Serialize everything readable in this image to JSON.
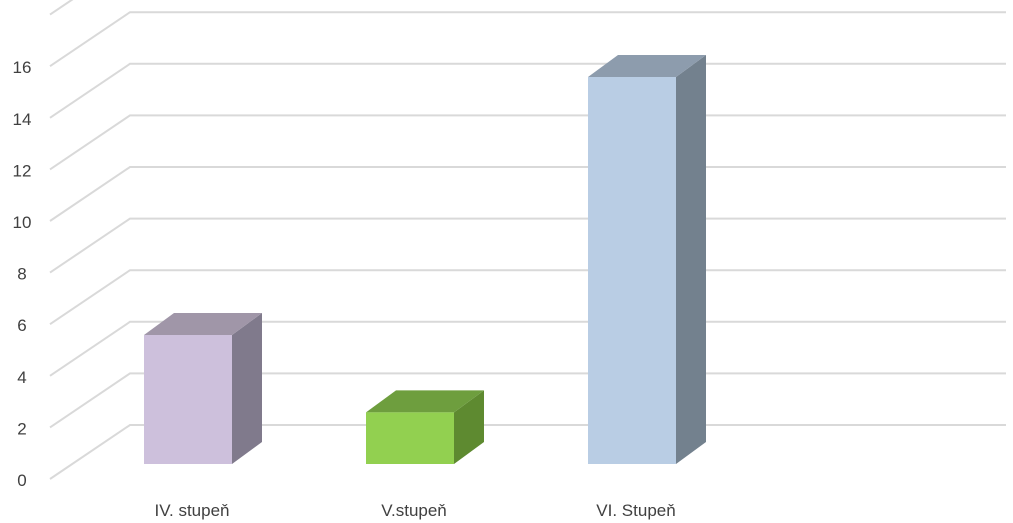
{
  "chart_data": {
    "type": "bar",
    "style": "3d-column",
    "categories": [
      "IV. stupeň",
      "V.stupeň",
      "VI. Stupeň"
    ],
    "values": [
      5,
      2,
      15
    ],
    "bar_colors": [
      {
        "front": "#cdc0dc",
        "side": "#807a8c",
        "top": "#a096a8"
      },
      {
        "front": "#92d050",
        "side": "#5e8a30",
        "top": "#6e9e3e"
      },
      {
        "front": "#b9cde4",
        "side": "#73818e",
        "top": "#8d9cad"
      }
    ],
    "ylim": [
      0,
      16
    ],
    "yticks": [
      0,
      2,
      4,
      6,
      8,
      10,
      12,
      14,
      16
    ],
    "grid": true,
    "grid_color": "#d9d9d9",
    "legend": "none",
    "title": "",
    "xlabel": "",
    "ylabel": ""
  }
}
